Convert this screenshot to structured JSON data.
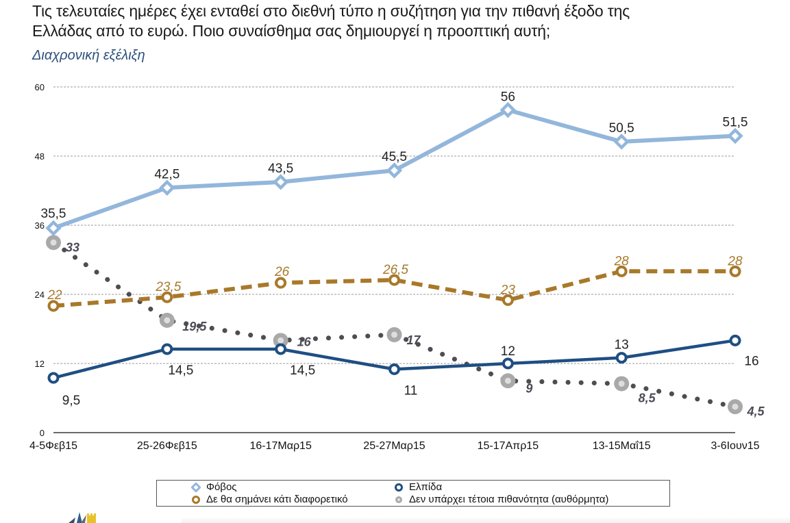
{
  "header": {
    "title_line1": "Τις τελευταίες ημέρες έχει ενταθεί στο διεθνή τύπο η συζήτηση για την πιθανή έξοδο της",
    "title_line2": "Ελλάδας από το ευρώ. Ποιο συναίσθημα σας δημιουργεί η προοπτική αυτή;",
    "subtitle": "Διαχρονική εξέλιξη"
  },
  "chart_data": {
    "type": "line",
    "title": "Τις τελευταίες ημέρες έχει ενταθεί στο διεθνή τύπο η συζήτηση για την πιθανή έξοδο της Ελλάδας από το ευρώ. Ποιο συναίσθημα σας δημιουργεί η προοπτική αυτή;",
    "subtitle": "Διαχρονική εξέλιξη",
    "xlabel": "",
    "ylabel": "",
    "categories": [
      "4-5Φεβ15",
      "25-26Φεβ15",
      "16-17Μαρ15",
      "25-27Μαρ15",
      "15-17Απρ15",
      "13-15Μαΐ15",
      "3-6Ιουν15"
    ],
    "yticks": [
      "0",
      "12",
      "24",
      "36",
      "48",
      "60"
    ],
    "ylim": [
      0,
      60
    ],
    "grid": true,
    "legend_position": "bottom",
    "series": [
      {
        "name": "Φόβος",
        "values": [
          35.5,
          42.5,
          43.5,
          45.5,
          56,
          50.5,
          51.5
        ],
        "labels": [
          "35,5",
          "42,5",
          "43,5",
          "45,5",
          "56",
          "50,5",
          "51,5"
        ],
        "color": "#93b6db",
        "style": "solid",
        "marker": "diamond"
      },
      {
        "name": "Ελπίδα",
        "values": [
          9.5,
          14.5,
          14.5,
          11,
          12,
          13,
          16
        ],
        "labels": [
          "9,5",
          "14,5",
          "14,5",
          "11",
          "12",
          "13",
          "16"
        ],
        "color": "#1f4e82",
        "style": "solid",
        "marker": "circle"
      },
      {
        "name": "Δε θα σημάνει κάτι διαφορετικό",
        "values": [
          22,
          23.5,
          26,
          26.5,
          23,
          28,
          28
        ],
        "labels": [
          "22",
          "23,5",
          "26",
          "26,5",
          "23",
          "28",
          "28"
        ],
        "color": "#a8792a",
        "style": "dashed",
        "marker": "circle"
      },
      {
        "name": "Δεν υπάρχει τέτοια πιθανότητα (αυθόρμητα)",
        "values": [
          33,
          19.5,
          16,
          17,
          9,
          8.5,
          4.5
        ],
        "labels": [
          "33",
          "19,5",
          "16",
          "17",
          "9",
          "8,5",
          "4,5"
        ],
        "color": "#4d4d52",
        "marker_color": "#a9a9a9",
        "style": "dotted",
        "marker": "circle"
      }
    ]
  },
  "legend": {
    "items": [
      {
        "label": "Φόβος"
      },
      {
        "label": "Ελπίδα"
      },
      {
        "label": "Δε θα σημάνει κάτι διαφορετικό"
      },
      {
        "label": "Δεν υπάρχει τέτοια πιθανότητα (αυθόρμητα)"
      }
    ]
  }
}
